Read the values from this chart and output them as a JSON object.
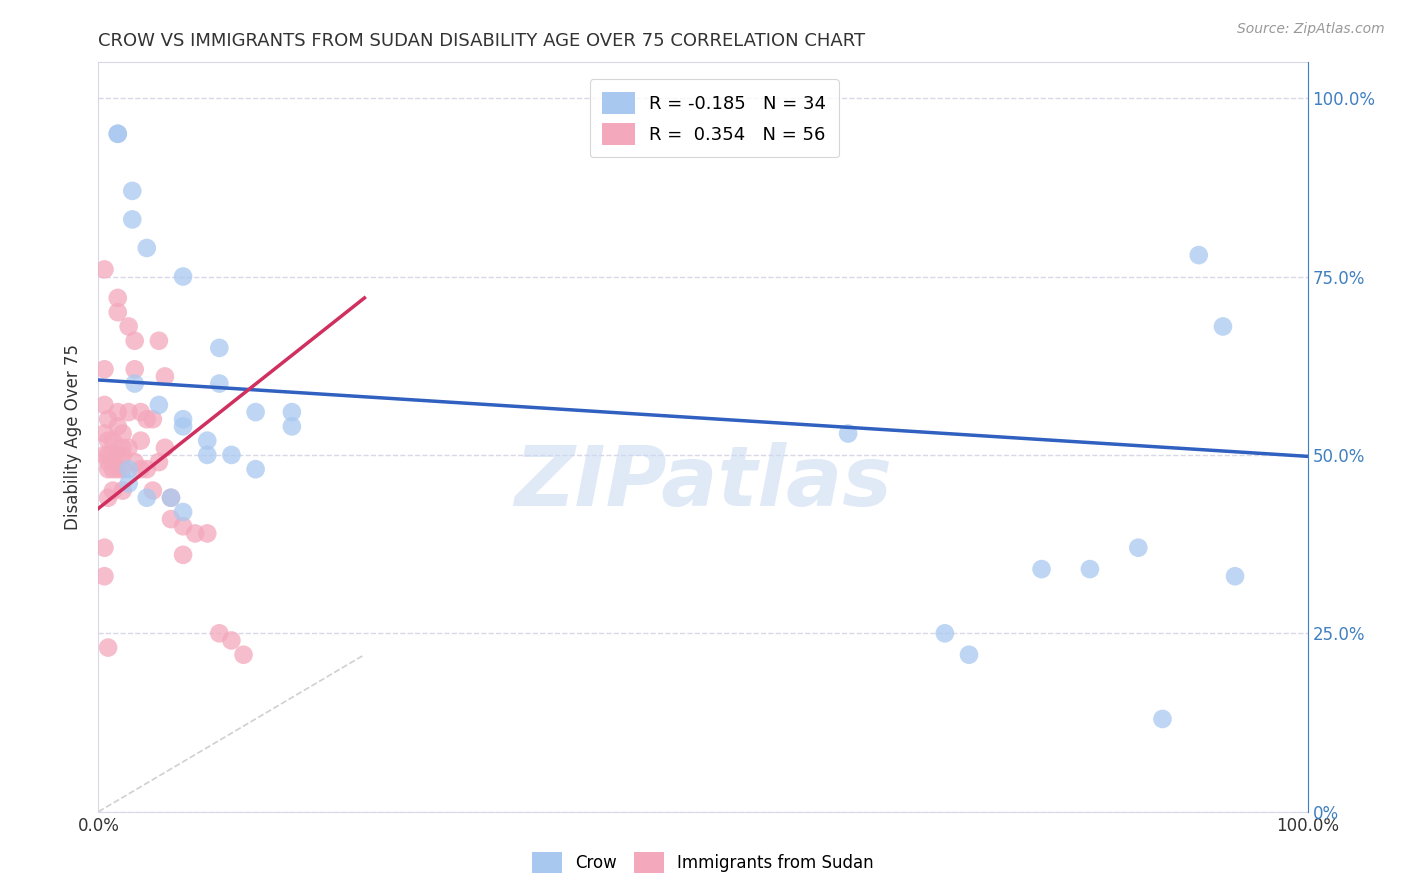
{
  "title": "CROW VS IMMIGRANTS FROM SUDAN DISABILITY AGE OVER 75 CORRELATION CHART",
  "source": "Source: ZipAtlas.com",
  "ylabel": "Disability Age Over 75",
  "blue_color": "#a8c8f0",
  "pink_color": "#f4a8bc",
  "blue_line_color": "#3060c0",
  "pink_line_color": "#d03060",
  "diag_line_color": "#d0d0d0",
  "watermark": "ZIPatlas",
  "watermark_color": "#c8d8f0",
  "crow_x": [
    0.016,
    0.016,
    0.028,
    0.028,
    0.04,
    0.07,
    0.1,
    0.1,
    0.13,
    0.16,
    0.16,
    0.03,
    0.05,
    0.07,
    0.07,
    0.09,
    0.09,
    0.11,
    0.13,
    0.025,
    0.025,
    0.04,
    0.06,
    0.07,
    0.62,
    0.7,
    0.72,
    0.82,
    0.86,
    0.91,
    0.93,
    0.94,
    0.78,
    0.88
  ],
  "crow_y": [
    0.95,
    0.95,
    0.87,
    0.83,
    0.79,
    0.75,
    0.65,
    0.6,
    0.56,
    0.54,
    0.56,
    0.6,
    0.57,
    0.55,
    0.54,
    0.52,
    0.5,
    0.5,
    0.48,
    0.48,
    0.46,
    0.44,
    0.44,
    0.42,
    0.53,
    0.25,
    0.22,
    0.34,
    0.37,
    0.78,
    0.68,
    0.33,
    0.34,
    0.13
  ],
  "sudan_x": [
    0.005,
    0.005,
    0.005,
    0.005,
    0.005,
    0.008,
    0.008,
    0.008,
    0.008,
    0.008,
    0.008,
    0.012,
    0.012,
    0.012,
    0.012,
    0.012,
    0.016,
    0.016,
    0.016,
    0.016,
    0.016,
    0.016,
    0.02,
    0.02,
    0.02,
    0.02,
    0.02,
    0.025,
    0.025,
    0.025,
    0.03,
    0.03,
    0.03,
    0.035,
    0.035,
    0.035,
    0.04,
    0.04,
    0.045,
    0.045,
    0.05,
    0.05,
    0.055,
    0.055,
    0.06,
    0.06,
    0.07,
    0.07,
    0.08,
    0.09,
    0.1,
    0.11,
    0.12,
    0.005,
    0.005,
    0.008
  ],
  "sudan_y": [
    0.76,
    0.62,
    0.57,
    0.53,
    0.5,
    0.55,
    0.52,
    0.5,
    0.49,
    0.48,
    0.44,
    0.52,
    0.5,
    0.49,
    0.48,
    0.45,
    0.72,
    0.7,
    0.56,
    0.54,
    0.5,
    0.48,
    0.53,
    0.51,
    0.5,
    0.48,
    0.45,
    0.68,
    0.56,
    0.51,
    0.66,
    0.62,
    0.49,
    0.56,
    0.52,
    0.48,
    0.55,
    0.48,
    0.55,
    0.45,
    0.66,
    0.49,
    0.61,
    0.51,
    0.44,
    0.41,
    0.4,
    0.36,
    0.39,
    0.39,
    0.25,
    0.24,
    0.22,
    0.37,
    0.33,
    0.23
  ],
  "blue_trend_x": [
    0.0,
    1.0
  ],
  "blue_trend_y": [
    0.605,
    0.498
  ],
  "pink_trend_x": [
    0.0,
    0.22
  ],
  "pink_trend_y": [
    0.425,
    0.72
  ],
  "diag_line_x": [
    0.0,
    0.22
  ],
  "diag_line_y": [
    0.0,
    0.22
  ],
  "xmin": 0.0,
  "xmax": 1.0,
  "ymin": 0.0,
  "ymax": 1.05,
  "yticks": [
    0.0,
    0.25,
    0.5,
    0.75,
    1.0
  ],
  "yticklabels_right": [
    "0%",
    "25.0%",
    "50.0%",
    "75.0%",
    "100.0%"
  ],
  "xtick_positions": [
    0.0,
    0.1,
    0.2,
    0.3,
    0.4,
    0.5,
    0.6,
    0.7,
    0.8,
    0.9,
    1.0
  ],
  "grid_color": "#d8d8e8",
  "right_tick_color": "#4080c0"
}
